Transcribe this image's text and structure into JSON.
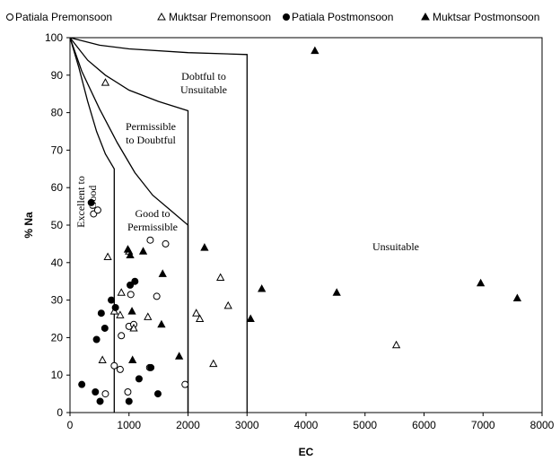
{
  "chart_data": {
    "type": "scatter",
    "title": "",
    "xlabel": "EC",
    "ylabel": "% Na",
    "xlim": [
      0,
      8000
    ],
    "ylim": [
      0,
      100
    ],
    "xticks": [
      "0",
      "1000",
      "2000",
      "3000",
      "4000",
      "5000",
      "6000",
      "7000",
      "8000"
    ],
    "yticks": [
      "0",
      "10",
      "20",
      "30",
      "40",
      "50",
      "60",
      "70",
      "80",
      "90",
      "100"
    ],
    "grid": false,
    "legend_position": "top",
    "series": [
      {
        "name": "Patiala Premonsoon",
        "marker": "circle-open",
        "points": [
          [
            400,
            53
          ],
          [
            470,
            54
          ],
          [
            600,
            5
          ],
          [
            750,
            12.5
          ],
          [
            850,
            11.5
          ],
          [
            870,
            20.5
          ],
          [
            980,
            5.5
          ],
          [
            1000,
            23
          ],
          [
            1030,
            31.5
          ],
          [
            1080,
            23.5
          ],
          [
            1350,
            12
          ],
          [
            1360,
            46
          ],
          [
            1470,
            31
          ],
          [
            1620,
            45
          ],
          [
            1950,
            7.5
          ]
        ]
      },
      {
        "name": "Muktsar Premonsoon",
        "marker": "triangle-open",
        "points": [
          [
            550,
            14
          ],
          [
            600,
            88
          ],
          [
            640,
            41.5
          ],
          [
            750,
            27
          ],
          [
            850,
            26
          ],
          [
            870,
            32
          ],
          [
            1000,
            43
          ],
          [
            1080,
            22.5
          ],
          [
            1320,
            25.5
          ],
          [
            2140,
            26.5
          ],
          [
            2200,
            25
          ],
          [
            2430,
            13
          ],
          [
            2550,
            36
          ],
          [
            2680,
            28.5
          ],
          [
            5530,
            18
          ]
        ]
      },
      {
        "name": "Patiala Postmonsoon",
        "marker": "circle-filled",
        "points": [
          [
            200,
            7.5
          ],
          [
            360,
            56
          ],
          [
            430,
            5.5
          ],
          [
            450,
            19.5
          ],
          [
            510,
            3
          ],
          [
            530,
            26.5
          ],
          [
            590,
            22.5
          ],
          [
            700,
            30
          ],
          [
            770,
            28
          ],
          [
            1000,
            3
          ],
          [
            1020,
            34
          ],
          [
            1100,
            35
          ],
          [
            1170,
            9
          ],
          [
            1370,
            12
          ],
          [
            1490,
            5
          ]
        ]
      },
      {
        "name": "Muktsar Postmonsoon",
        "marker": "triangle-filled",
        "points": [
          [
            980,
            43.5
          ],
          [
            1020,
            42
          ],
          [
            1050,
            27
          ],
          [
            1060,
            14
          ],
          [
            1240,
            43
          ],
          [
            1550,
            23.5
          ],
          [
            1570,
            37
          ],
          [
            1850,
            15
          ],
          [
            2280,
            44
          ],
          [
            3060,
            25
          ],
          [
            3250,
            33
          ],
          [
            4150,
            96.5
          ],
          [
            4520,
            32
          ],
          [
            6960,
            34.5
          ],
          [
            7580,
            30.5
          ]
        ]
      }
    ],
    "region_labels": [
      "Excellent to Good",
      "Good to Permissible",
      "Permissible to Doubtful",
      "Dobtful to Unsuitable",
      "Unsuitable"
    ]
  },
  "legend": {
    "items": [
      {
        "label": "Patiala Premonsoon",
        "marker": "circle-open"
      },
      {
        "label": "Muktsar Premonsoon",
        "marker": "triangle-open"
      },
      {
        "label": "Patiala Postmonsoon",
        "marker": "circle-filled"
      },
      {
        "label": "Muktsar Postmonsoon",
        "marker": "triangle-filled"
      }
    ]
  },
  "regions": {
    "excellent_line1": "Excellent to",
    "excellent_line2": "Good",
    "good_line1": "Good to",
    "good_line2": "Permissible",
    "permissible_line1": "Permissible",
    "permissible_line2": "to Doubtful",
    "doubtful_line1": "Dobtful to",
    "doubtful_line2": "Unsuitable",
    "unsuitable": "Unsuitable"
  },
  "colors": {
    "marker": "#000000",
    "axis": "#000000",
    "background": "#ffffff"
  }
}
